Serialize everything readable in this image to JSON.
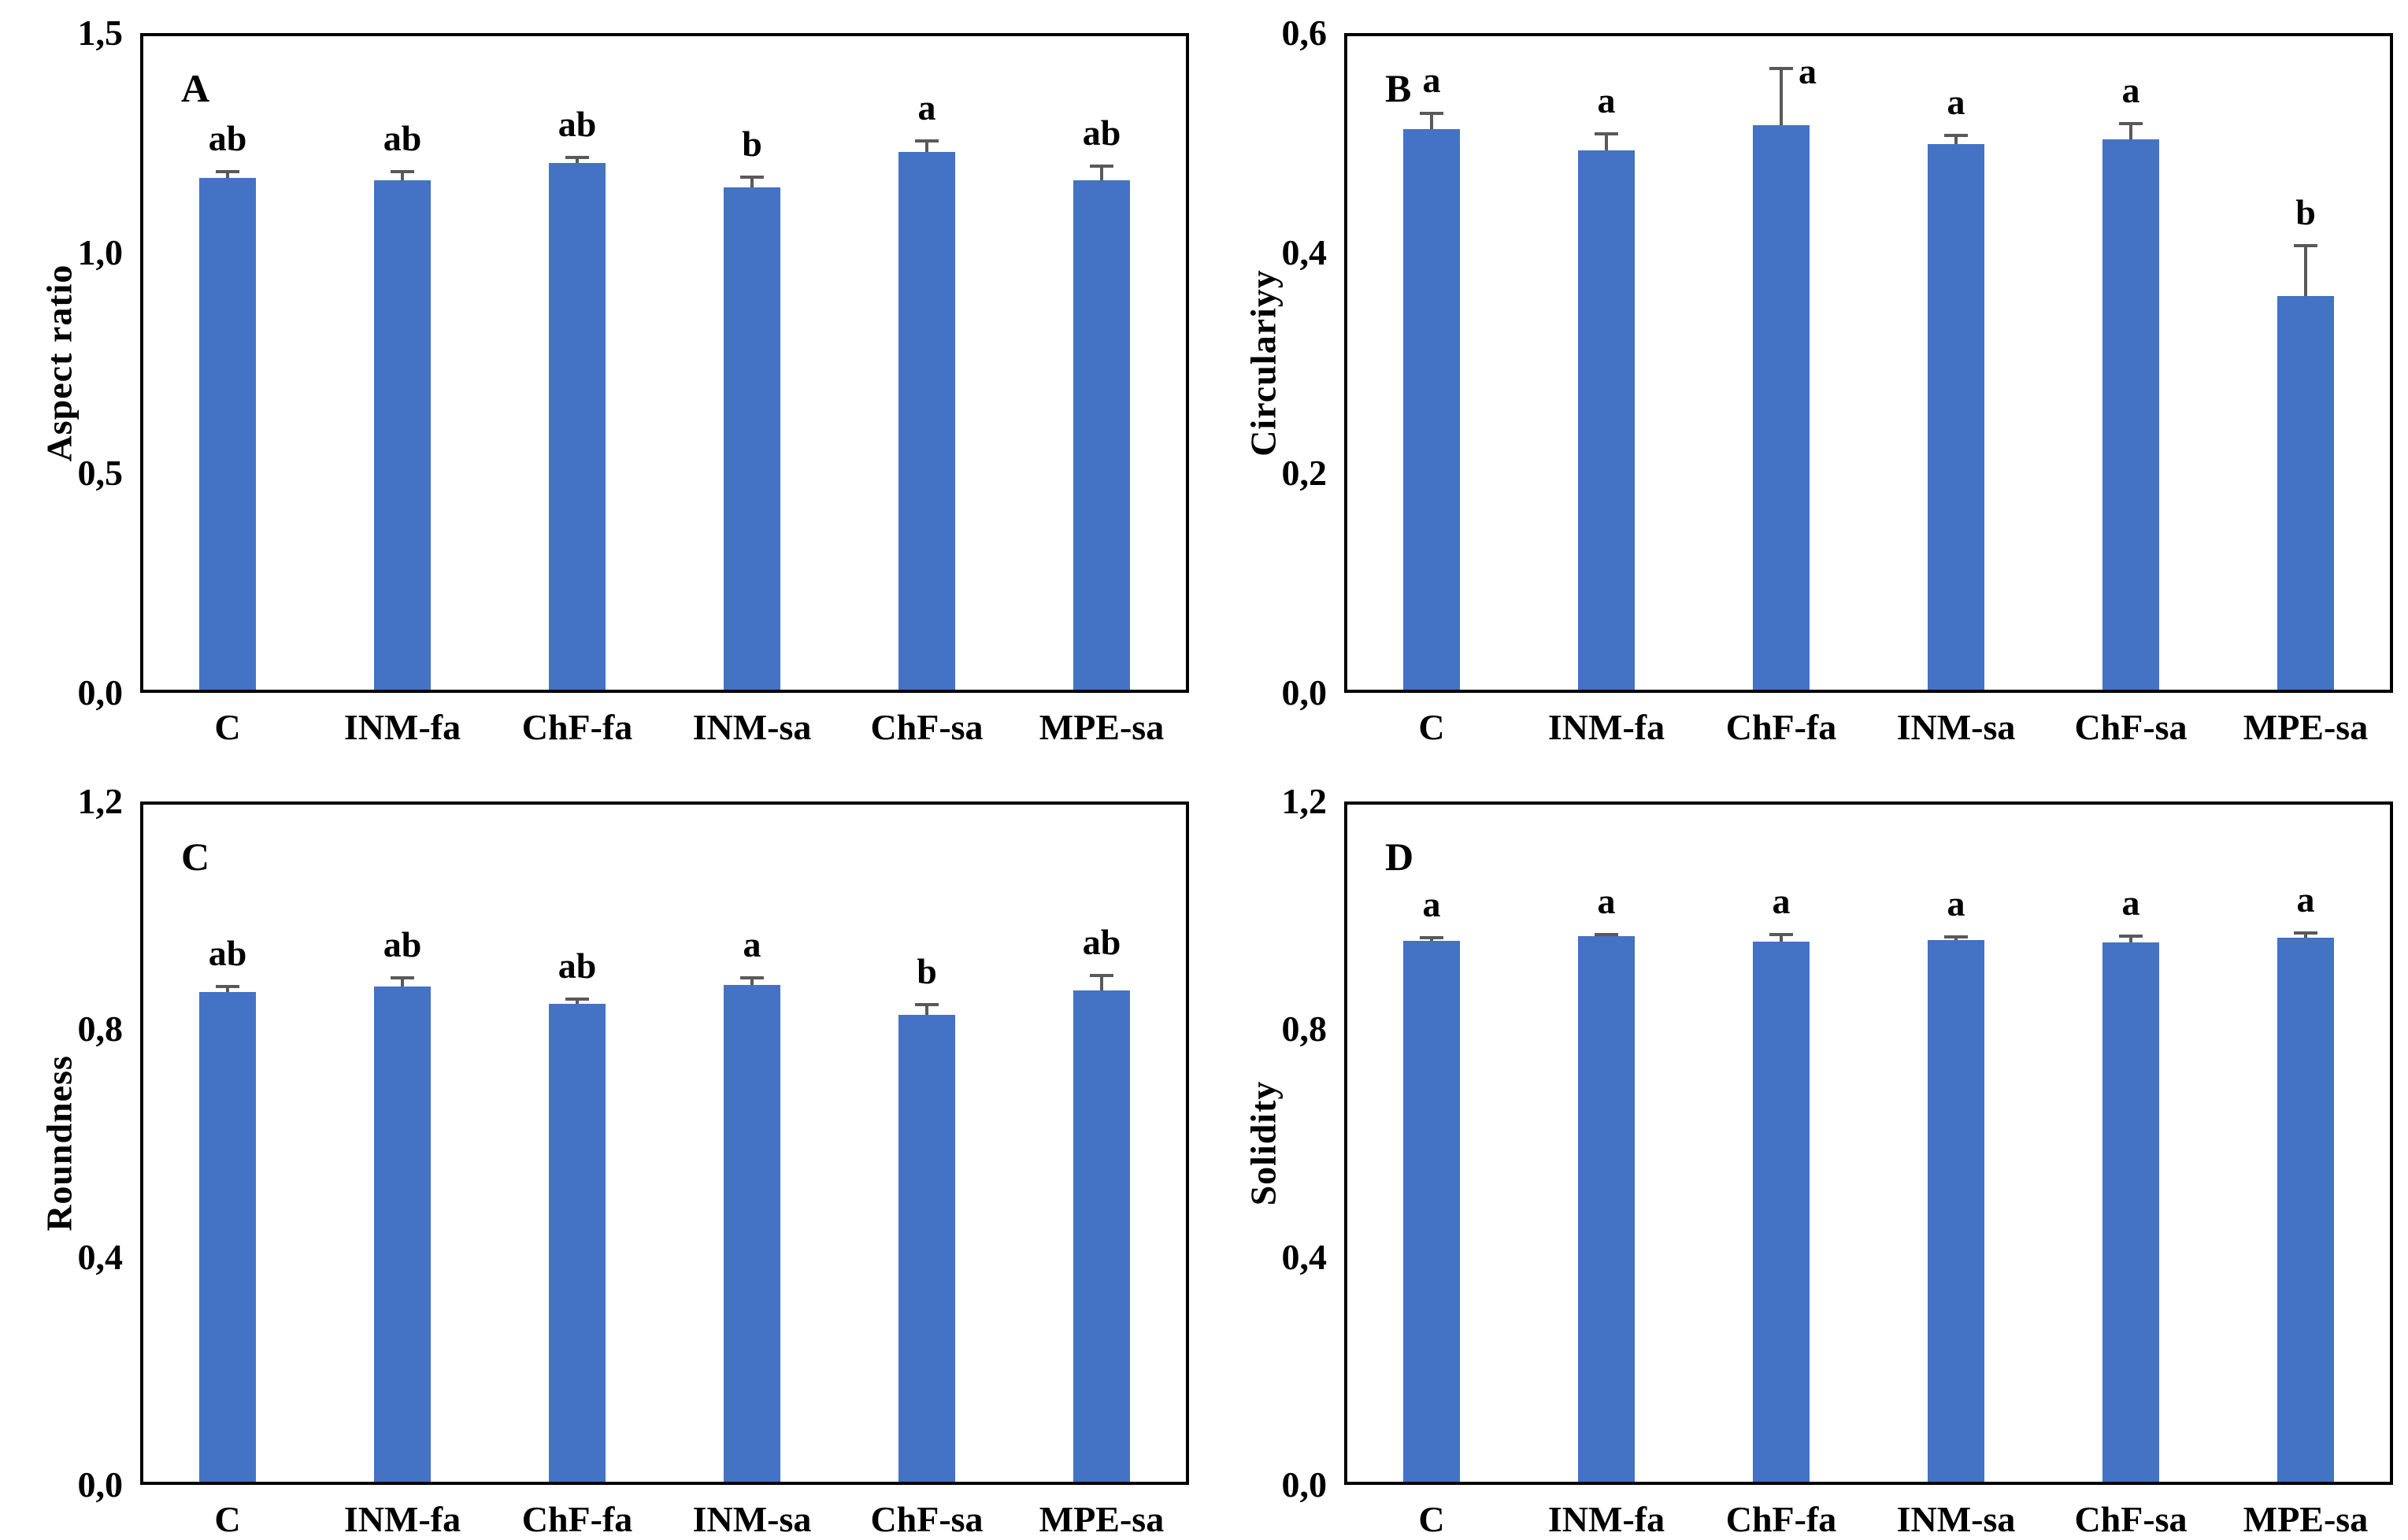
{
  "figure": {
    "background": "#ffffff",
    "bar_color": "#4472C4",
    "error_color": "#595959",
    "frame_color": "#000000",
    "text_color": "#000000"
  },
  "chart_data": [
    {
      "type": "bar",
      "panel_label": "A",
      "title": "",
      "xlabel": "",
      "ylabel": "Aspect ratio",
      "ylim": [
        0,
        1.5
      ],
      "grid": false,
      "legend": null,
      "yticks": [
        {
          "v": 0.0,
          "label": "0,0"
        },
        {
          "v": 0.5,
          "label": "0,5"
        },
        {
          "v": 1.0,
          "label": "1,0"
        },
        {
          "v": 1.5,
          "label": "1,5"
        }
      ],
      "categories": [
        "C",
        "INM-fa",
        "ChF-fa",
        "INM-sa",
        "ChF-sa",
        "MPE-sa"
      ],
      "values": [
        1.17,
        1.165,
        1.205,
        1.15,
        1.23,
        1.165
      ],
      "errors": [
        0.015,
        0.02,
        0.012,
        0.022,
        0.025,
        0.033
      ],
      "sig_letters": [
        "ab",
        "ab",
        "ab",
        "b",
        "a",
        "ab"
      ]
    },
    {
      "type": "bar",
      "panel_label": "B",
      "title": "",
      "xlabel": "",
      "ylabel": "Circulariyy",
      "ylim": [
        0,
        0.6
      ],
      "grid": false,
      "legend": null,
      "yticks": [
        {
          "v": 0.0,
          "label": "0,0"
        },
        {
          "v": 0.2,
          "label": "0,2"
        },
        {
          "v": 0.4,
          "label": "0,4"
        },
        {
          "v": 0.6,
          "label": "0,6"
        }
      ],
      "categories": [
        "C",
        "INM-fa",
        "ChF-fa",
        "INM-sa",
        "ChF-sa",
        "MPE-sa"
      ],
      "values": [
        0.513,
        0.493,
        0.516,
        0.499,
        0.503,
        0.361
      ],
      "errors": [
        0.014,
        0.015,
        0.052,
        0.008,
        0.015,
        0.046
      ],
      "sig_letters": [
        "a",
        "a",
        "a",
        "a",
        "a",
        "b"
      ]
    },
    {
      "type": "bar",
      "panel_label": "C",
      "title": "",
      "xlabel": "",
      "ylabel": "Roundness",
      "ylim": [
        0,
        1.2
      ],
      "grid": false,
      "legend": null,
      "yticks": [
        {
          "v": 0.0,
          "label": "0,0"
        },
        {
          "v": 0.4,
          "label": "0,4"
        },
        {
          "v": 0.8,
          "label": "0,8"
        },
        {
          "v": 1.2,
          "label": "1,2"
        }
      ],
      "categories": [
        "C",
        "INM-fa",
        "ChF-fa",
        "INM-sa",
        "ChF-sa",
        "MPE-sa"
      ],
      "values": [
        0.865,
        0.875,
        0.845,
        0.878,
        0.825,
        0.868
      ],
      "errors": [
        0.01,
        0.015,
        0.008,
        0.013,
        0.018,
        0.027
      ],
      "sig_letters": [
        "ab",
        "ab",
        "ab",
        "a",
        "b",
        "ab"
      ]
    },
    {
      "type": "bar",
      "panel_label": "D",
      "title": "",
      "xlabel": "",
      "ylabel": "Solidity",
      "ylim": [
        0,
        1.2
      ],
      "grid": false,
      "legend": null,
      "yticks": [
        {
          "v": 0.0,
          "label": "0,0"
        },
        {
          "v": 0.4,
          "label": "0,4"
        },
        {
          "v": 0.8,
          "label": "0,8"
        },
        {
          "v": 1.2,
          "label": "1,2"
        }
      ],
      "categories": [
        "C",
        "INM-fa",
        "ChF-fa",
        "INM-sa",
        "ChF-sa",
        "MPE-sa"
      ],
      "values": [
        0.955,
        0.963,
        0.954,
        0.957,
        0.952,
        0.961
      ],
      "errors": [
        0.006,
        0.004,
        0.012,
        0.005,
        0.012,
        0.008
      ],
      "sig_letters": [
        "a",
        "a",
        "a",
        "a",
        "a",
        "a"
      ]
    }
  ]
}
